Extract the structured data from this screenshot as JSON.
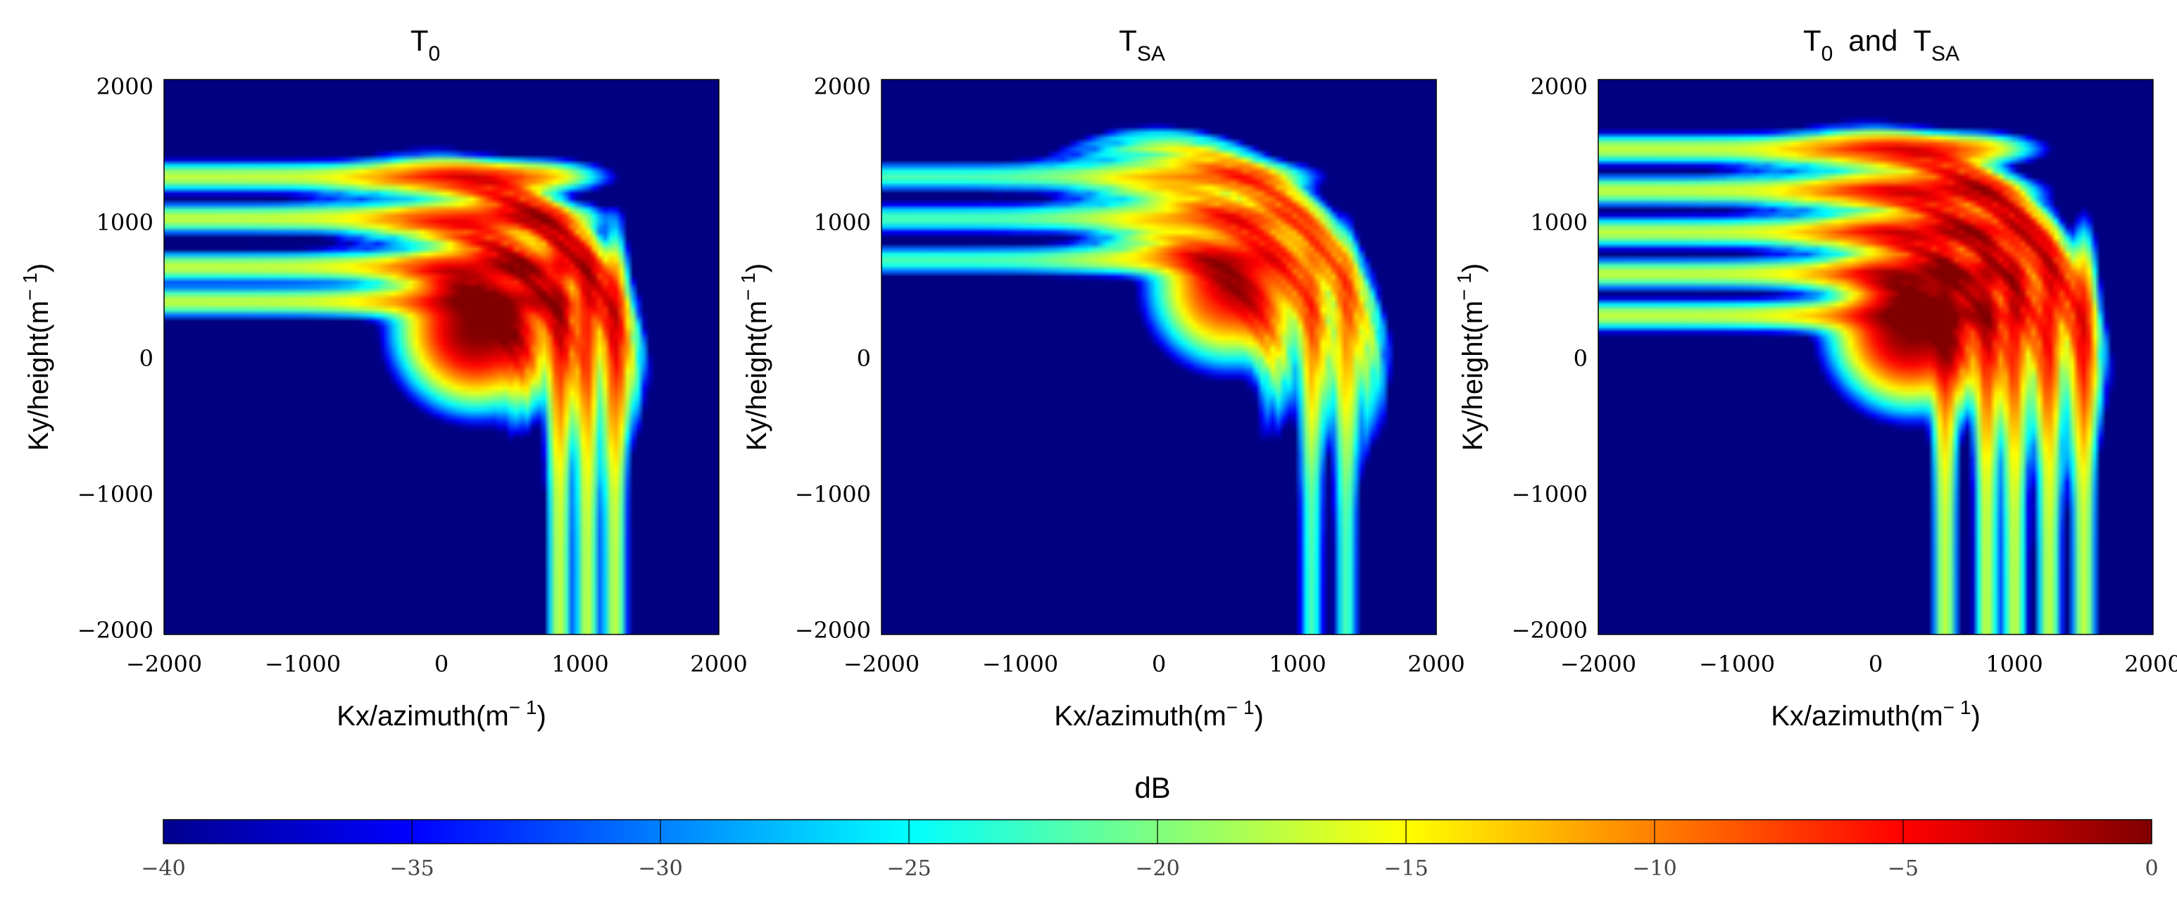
{
  "chart_data": [
    {
      "type": "heatmap",
      "title": "T",
      "title_sub": "0",
      "xlabel": "Kx/azimuth(m",
      "ylabel": "Ky/height(m",
      "unit_sup": "− 1",
      "unit_close": ")",
      "xlim": [
        -2000,
        2000
      ],
      "ylim": [
        -2000,
        2000
      ],
      "xticks": [
        -2000,
        -1000,
        0,
        1000,
        2000
      ],
      "yticks": [
        -2000,
        -1000,
        0,
        1000,
        2000
      ],
      "xtick_labels": [
        "−2000",
        "−1000",
        "0",
        "1000",
        "2000"
      ],
      "ytick_labels": [
        "−2000",
        "−1000",
        "0",
        "1000",
        "2000"
      ],
      "peak_db": 0,
      "floor_db": -40,
      "main_lobe_center": [
        250,
        200
      ],
      "arc_center": [
        -200,
        -200
      ],
      "arc_radii": [
        800,
        1150,
        1500
      ],
      "horizontal_streak_ky": [
        400,
        650,
        1000,
        1300
      ],
      "vertical_streak_kx": [
        850,
        1050,
        1250
      ]
    },
    {
      "type": "heatmap",
      "title": "T",
      "title_sub": "SA",
      "xlabel": "Kx/azimuth(m",
      "ylabel": "Ky/height(m",
      "unit_sup": "− 1",
      "unit_close": ")",
      "xlim": [
        -2000,
        2000
      ],
      "ylim": [
        -2000,
        2000
      ],
      "xticks": [
        -2000,
        -1000,
        0,
        1000,
        2000
      ],
      "yticks": [
        -2000,
        -1000,
        0,
        1000,
        2000
      ],
      "xtick_labels": [
        "−2000",
        "−1000",
        "0",
        "1000",
        "2000"
      ],
      "ytick_labels": [
        "−2000",
        "−1000",
        "0",
        "1000",
        "2000"
      ],
      "peak_db": -5,
      "floor_db": -40,
      "main_lobe_center": [
        500,
        500
      ],
      "arc_center": [
        -200,
        -200
      ],
      "arc_radii": [
        1050,
        1400,
        1700
      ],
      "horizontal_streak_ky": [
        700,
        1000,
        1300
      ],
      "vertical_streak_kx": [
        1100,
        1350
      ]
    },
    {
      "type": "heatmap",
      "title": "T",
      "title_sub": "0",
      "title_mid": "and",
      "title2": "T",
      "title2_sub": "SA",
      "xlabel": "Kx/azimuth(m",
      "ylabel": "Ky/height(m",
      "unit_sup": "− 1",
      "unit_close": ")",
      "xlim": [
        -2000,
        2000
      ],
      "ylim": [
        -2000,
        2000
      ],
      "xticks": [
        -2000,
        -1000,
        0,
        1000,
        2000
      ],
      "yticks": [
        -2000,
        -1000,
        0,
        1000,
        2000
      ],
      "xtick_labels": [
        "−2000",
        "−1000",
        "0",
        "1000",
        "2000"
      ],
      "ytick_labels": [
        "−2000",
        "−1000",
        "0",
        "1000",
        "2000"
      ],
      "peak_db": 0,
      "floor_db": -40,
      "main_lobe_center": [
        250,
        200
      ],
      "arc_center": [
        -200,
        -200
      ],
      "arc_radii": [
        800,
        1100,
        1400,
        1700
      ],
      "horizontal_streak_ky": [
        300,
        600,
        900,
        1200,
        1500
      ],
      "vertical_streak_kx": [
        500,
        800,
        1000,
        1250,
        1500
      ]
    }
  ],
  "colorbar": {
    "label": "dB",
    "range": [
      -40,
      0
    ],
    "ticks": [
      -40,
      -35,
      -30,
      -25,
      -20,
      -15,
      -10,
      -5,
      0
    ],
    "tick_labels": [
      "−40",
      "−35",
      "−30",
      "−25",
      "−20",
      "−15",
      "−10",
      "−5",
      "0"
    ],
    "colormap": "jet",
    "colors": [
      "#00008f",
      "#0000ff",
      "#00ffff",
      "#ffff00",
      "#ff0000",
      "#800000"
    ]
  }
}
